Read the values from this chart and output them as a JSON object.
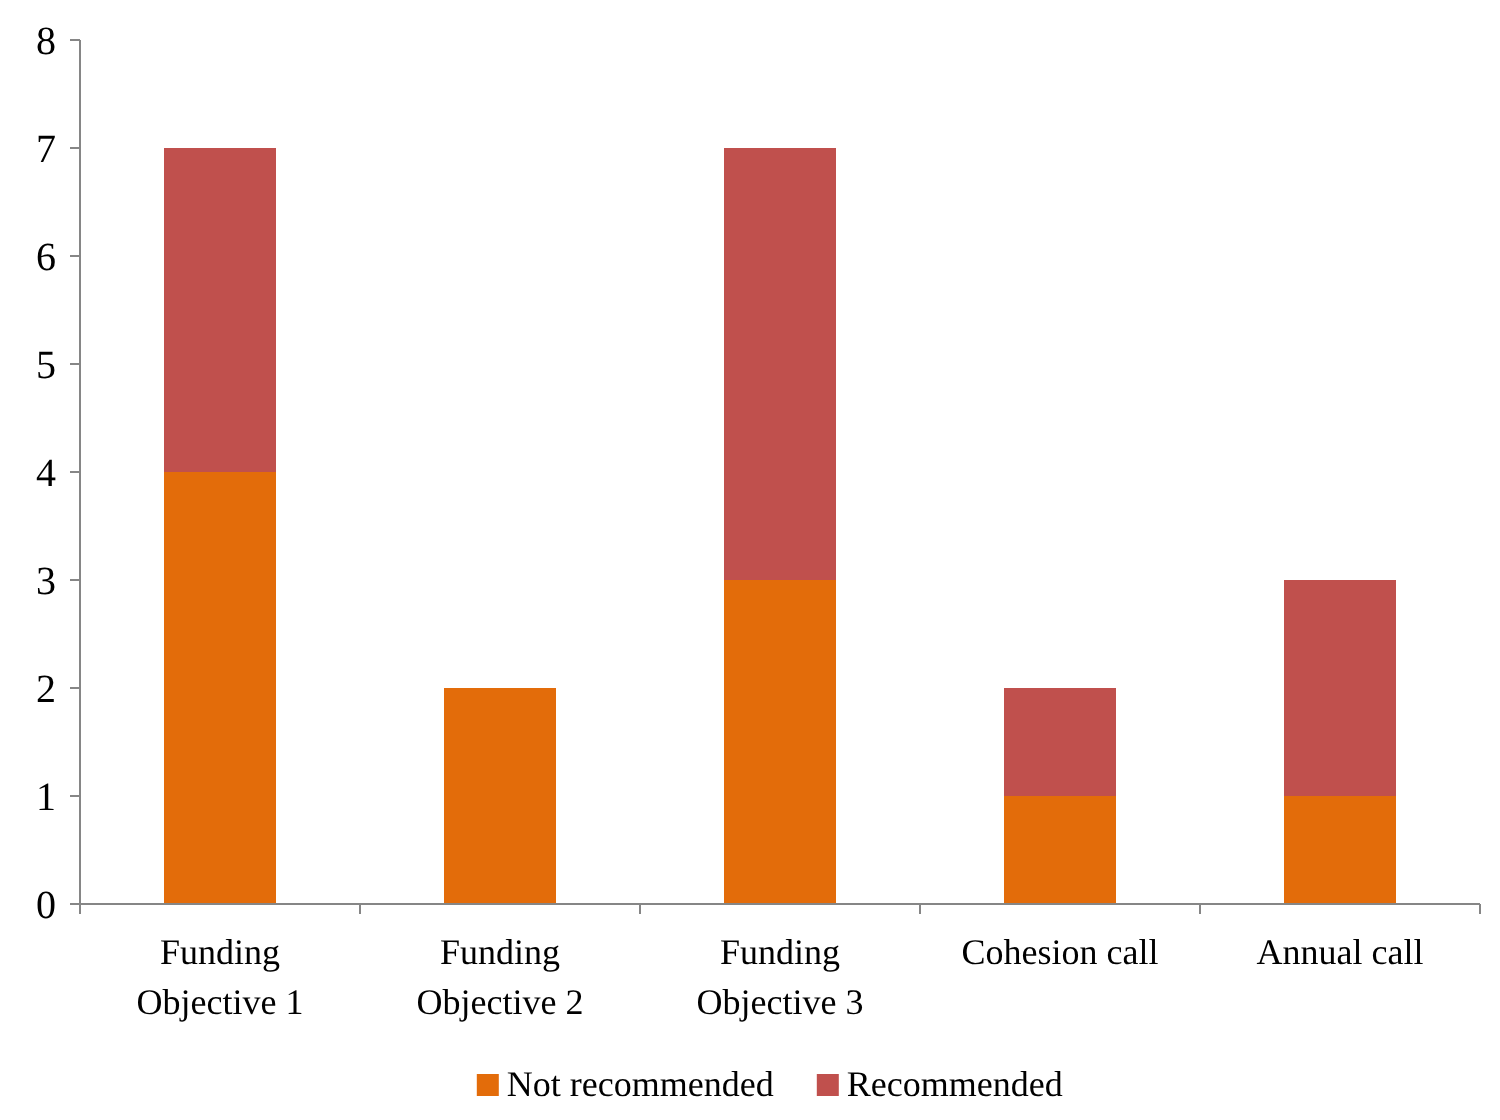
{
  "chart_data": {
    "type": "bar",
    "stacked": true,
    "categories": [
      "Funding Objective 1",
      "Funding Objective 2",
      "Funding Objective 3",
      "Cohesion call",
      "Annual call"
    ],
    "series": [
      {
        "name": "Not recommended",
        "color": "#e36c0a",
        "values": [
          4,
          2,
          3,
          1,
          1
        ]
      },
      {
        "name": "Recommended",
        "color": "#c0504d",
        "values": [
          3,
          0,
          4,
          1,
          2
        ]
      }
    ],
    "ylim": [
      0,
      8
    ],
    "yticks": [
      0,
      1,
      2,
      3,
      4,
      5,
      6,
      7,
      8
    ],
    "grid": false,
    "legend": "bottom"
  }
}
